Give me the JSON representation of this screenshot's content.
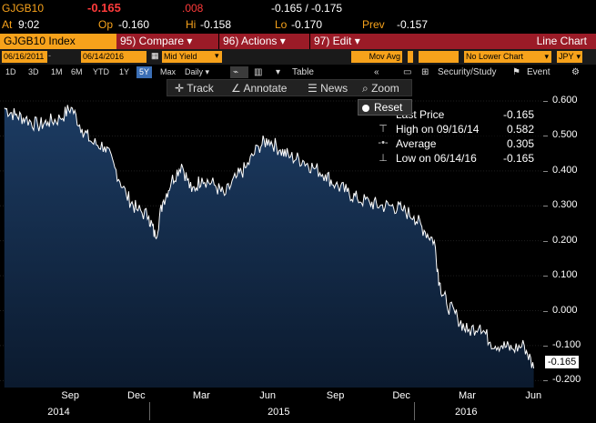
{
  "quote": {
    "ticker": "GJGB10",
    "last": "-0.165",
    "change": ".008",
    "bid_ask": "-0.165 / -0.175",
    "time_label": "At",
    "time": "9:02",
    "open_label": "Op",
    "open": "-0.160",
    "high_label": "Hi",
    "high": "-0.158",
    "low_label": "Lo",
    "low": "-0.170",
    "prev_label": "Prev",
    "prev": "-0.157"
  },
  "function_bar": {
    "title": "GJGB10 Index",
    "compare": "95) Compare",
    "actions": "96) Actions",
    "edit": "97) Edit",
    "chart_type": "Line Chart"
  },
  "inputs": {
    "start_date": "06/16/2011",
    "end_date": "06/14/2016",
    "field": "Mid Yield",
    "mov_avg": "Mov Avg",
    "lower_chart": "No Lower Chart",
    "currency": "JPY"
  },
  "periods": [
    "1D",
    "3D",
    "1M",
    "6M",
    "YTD",
    "1Y",
    "5Y",
    "Max"
  ],
  "active_period": "5Y",
  "frequency": "Daily",
  "table_label": "Table",
  "security_label": "Security/Study",
  "event_label": "Event",
  "toolbar": {
    "track": "Track",
    "annotate": "Annotate",
    "news": "News",
    "zoom": "Zoom",
    "reset": "Reset"
  },
  "legend": {
    "last_label": "Last Price",
    "last_value": "-0.165",
    "high_label": "High on 09/16/14",
    "high_value": "0.582",
    "avg_label": "Average",
    "avg_value": "0.305",
    "low_label": "Low on 06/14/16",
    "low_value": "-0.165"
  },
  "last_price_tag": "-0.165",
  "x_months": [
    "Sep",
    "Dec",
    "Mar",
    "Jun",
    "Sep",
    "Dec",
    "Mar",
    "Jun"
  ],
  "x_years": [
    "2014",
    "2015",
    "2016"
  ],
  "colors": {
    "orange": "#f7a21b",
    "red": "#ff3b3b",
    "function_bar": "#9b1b27",
    "area_top": "#1c3b62",
    "area_bottom": "#0b1a2e",
    "line": "#ffffff"
  },
  "chart_data": {
    "type": "area",
    "title": "",
    "xlabel": "",
    "ylabel": "",
    "ylim": [
      -0.22,
      0.66
    ],
    "yticks": [
      "0.600",
      "0.500",
      "0.400",
      "0.300",
      "0.200",
      "0.100",
      "0.000",
      "-0.100",
      "-0.200"
    ],
    "series": [
      {
        "x": [
          "2014-06-16",
          "2014-07-01",
          "2014-07-15",
          "2014-08-01",
          "2014-08-15",
          "2014-09-01",
          "2014-09-16",
          "2014-10-01",
          "2014-10-15",
          "2014-11-01",
          "2014-11-15",
          "2014-12-01",
          "2014-12-15",
          "2015-01-01",
          "2015-01-10",
          "2015-01-20",
          "2015-02-01",
          "2015-02-15",
          "2015-03-01",
          "2015-03-15",
          "2015-04-01",
          "2015-04-15",
          "2015-05-01",
          "2015-05-15",
          "2015-06-01",
          "2015-06-15",
          "2015-07-01",
          "2015-07-15",
          "2015-08-01",
          "2015-08-15",
          "2015-09-01",
          "2015-09-15",
          "2015-10-01",
          "2015-10-15",
          "2015-11-01",
          "2015-11-15",
          "2015-12-01",
          "2015-12-15",
          "2016-01-01",
          "2016-01-15",
          "2016-01-29",
          "2016-02-05",
          "2016-02-15",
          "2016-03-01",
          "2016-03-15",
          "2016-04-01",
          "2016-04-15",
          "2016-05-01",
          "2016-05-15",
          "2016-06-01",
          "2016-06-14"
        ],
        "values": [
          0.58,
          0.56,
          0.55,
          0.53,
          0.54,
          0.55,
          0.582,
          0.52,
          0.48,
          0.47,
          0.41,
          0.33,
          0.29,
          0.27,
          0.21,
          0.31,
          0.37,
          0.42,
          0.34,
          0.38,
          0.36,
          0.33,
          0.38,
          0.41,
          0.47,
          0.49,
          0.46,
          0.44,
          0.43,
          0.41,
          0.39,
          0.36,
          0.34,
          0.32,
          0.31,
          0.3,
          0.3,
          0.29,
          0.27,
          0.23,
          0.2,
          0.08,
          0.02,
          -0.02,
          -0.06,
          -0.04,
          -0.09,
          -0.1,
          -0.11,
          -0.1,
          -0.165
        ]
      }
    ]
  }
}
